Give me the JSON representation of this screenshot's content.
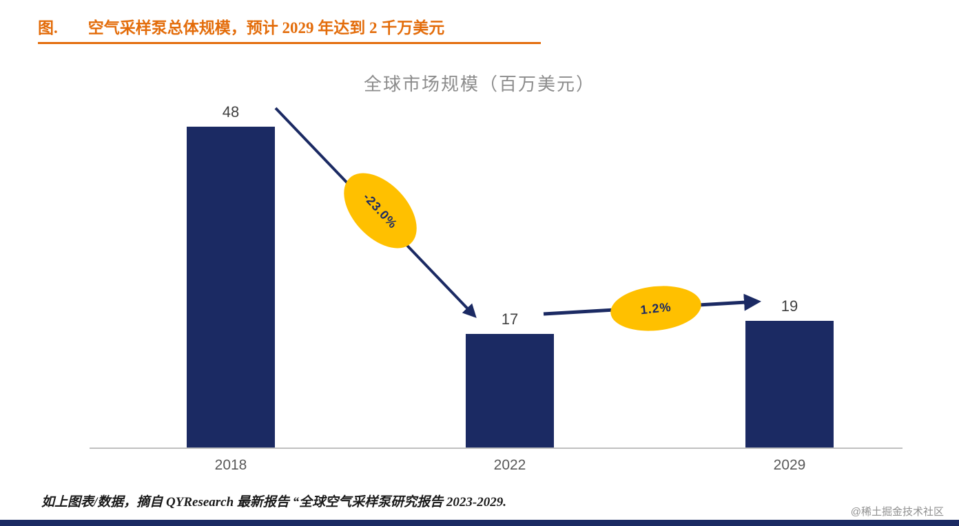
{
  "page": {
    "figure_label": "图.",
    "figure_title": "空气采样泵总体规模，预计 2029 年达到 2 千万美元",
    "footnote": "如上图表/数据，摘自 QYResearch 最新报告 “全球空气采样泵研究报告 2023-2029.",
    "watermark": "@稀土掘金技术社区"
  },
  "chart_data": {
    "type": "bar",
    "title": "全球市场规模（百万美元）",
    "categories": [
      "2018",
      "2022",
      "2029"
    ],
    "values": [
      48,
      17,
      19
    ],
    "xlabel": "",
    "ylabel": "",
    "ylim": [
      0,
      50
    ],
    "grid": false,
    "legend": false,
    "value_labels_shown": true,
    "bar_color": "#1b2a63",
    "annotations": [
      {
        "type": "arrow",
        "from_category": "2018",
        "to_category": "2022",
        "label": "-23.0%",
        "label_shape": "ellipse",
        "label_bg": "#ffc000",
        "label_color": "#1b2a63"
      },
      {
        "type": "arrow",
        "from_category": "2022",
        "to_category": "2029",
        "label": "1.2%",
        "label_shape": "ellipse",
        "label_bg": "#ffc000",
        "label_color": "#1b2a63"
      }
    ]
  },
  "colors": {
    "title_orange": "#e36c0a",
    "chart_title_gray": "#8c8c8c",
    "axis_gray": "#bfbfbf",
    "bar_navy": "#1b2a63",
    "annotation_yellow": "#ffc000",
    "value_label_gray": "#3f3f3f"
  }
}
